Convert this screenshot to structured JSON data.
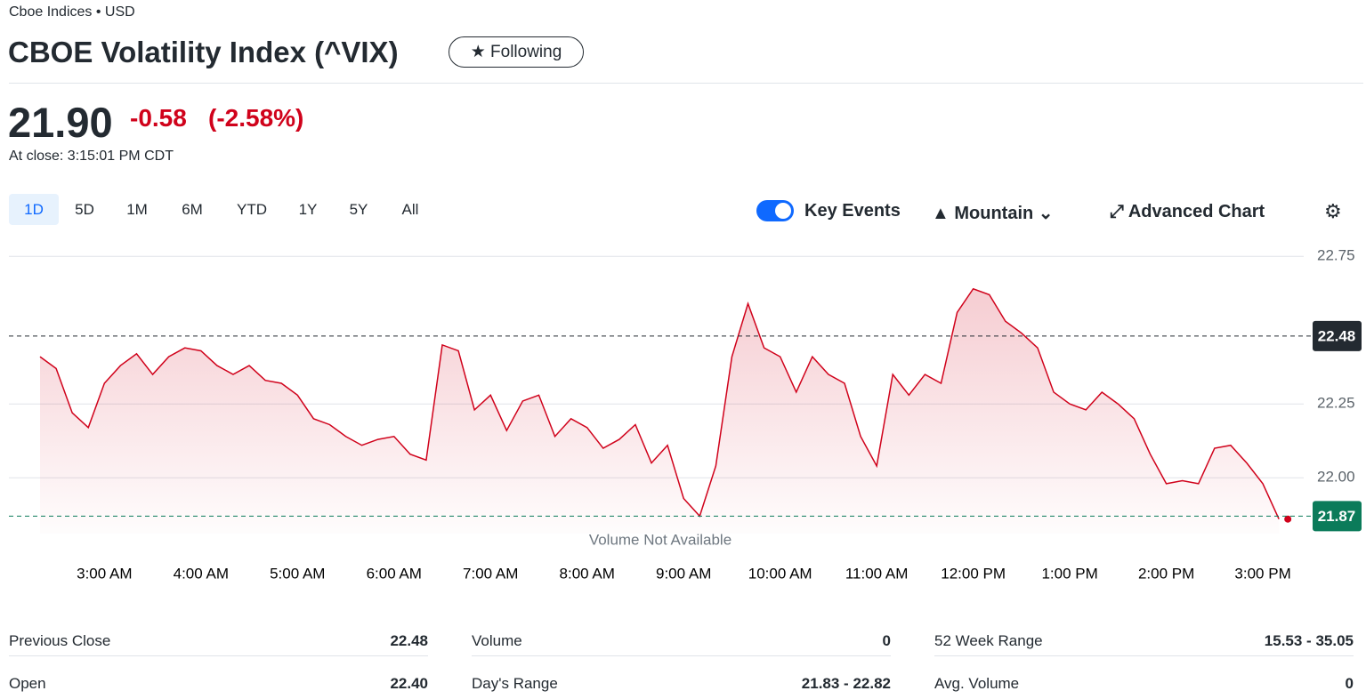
{
  "header": {
    "exchange": "Cboe Indices • USD",
    "title": "CBOE Volatility Index (^VIX)",
    "follow_button": "Following"
  },
  "quote": {
    "price": "21.90",
    "change": "-0.58",
    "change_percent": "(-2.58%)",
    "time": "At close: 3:15:01 PM CDT"
  },
  "toolbar": {
    "ranges": [
      "1D",
      "5D",
      "1M",
      "6M",
      "YTD",
      "1Y",
      "5Y",
      "All"
    ],
    "key_events": "Key Events",
    "chart_style": "Mountain",
    "advanced": "Advanced Chart"
  },
  "chart_data": {
    "type": "area",
    "categories": [
      null,
      null,
      null,
      null,
      "3:00 AM",
      null,
      null,
      null,
      null,
      null,
      "4:00 AM",
      null,
      null,
      null,
      null,
      null,
      "5:00 AM",
      null,
      null,
      null,
      null,
      null,
      "6:00 AM",
      null,
      null,
      null,
      null,
      null,
      "7:00 AM",
      null,
      null,
      null,
      null,
      null,
      "8:00 AM",
      null,
      null,
      null,
      null,
      null,
      "9:00 AM",
      null,
      null,
      null,
      null,
      null,
      "10:00 AM",
      null,
      null,
      null,
      null,
      null,
      "11:00 AM",
      null,
      null,
      null,
      null,
      null,
      "12:00 PM",
      null,
      null,
      null,
      null,
      null,
      "1:00 PM",
      null,
      null,
      null,
      null,
      null,
      "2:00 PM",
      null,
      null,
      null,
      null,
      null,
      "3:00 PM",
      null
    ],
    "series": [
      {
        "color": "#d0021b",
        "values": [
          22.41,
          22.37,
          22.22,
          22.17,
          22.32,
          22.38,
          22.42,
          22.35,
          22.41,
          22.44,
          22.43,
          22.38,
          22.35,
          22.38,
          22.33,
          22.32,
          22.28,
          22.2,
          22.18,
          22.14,
          22.11,
          22.13,
          22.14,
          22.08,
          22.06,
          22.45,
          22.43,
          22.23,
          22.28,
          22.16,
          22.26,
          22.28,
          22.14,
          22.2,
          22.17,
          22.1,
          22.13,
          22.18,
          22.05,
          22.11,
          21.93,
          21.87,
          22.04,
          22.41,
          22.59,
          22.44,
          22.41,
          22.29,
          22.41,
          22.35,
          22.32,
          22.14,
          22.04,
          22.35,
          22.28,
          22.35,
          22.32,
          22.56,
          22.64,
          22.62,
          22.53,
          22.49,
          22.44,
          22.29,
          22.25,
          22.23,
          22.29,
          22.25,
          22.2,
          22.08,
          21.98,
          21.99,
          21.98,
          22.1,
          22.11,
          22.05,
          21.98,
          21.86
        ]
      }
    ],
    "ylim": [
      21.82,
      22.77
    ],
    "yticks": [
      {
        "value": 22,
        "label": "22.00"
      },
      22.25,
      22.75
    ],
    "grid": true,
    "reference_lines": [
      {
        "value": 22.48,
        "color": "#232a31"
      },
      {
        "value": 21.87,
        "color": "#0b7b5a"
      }
    ],
    "annotation": "Volume Not Available"
  },
  "stats": [
    {
      "label": "Previous Close",
      "value": "22.48"
    },
    {
      "label": "Volume",
      "value": "0"
    },
    {
      "label": "52 Week Range",
      "value": "15.53 - 35.05"
    },
    {
      "label": "Open",
      "value": "22.40"
    },
    {
      "label": "Day's Range",
      "value": "21.83 - 22.82"
    },
    {
      "label": "Avg. Volume",
      "value": "0"
    }
  ]
}
